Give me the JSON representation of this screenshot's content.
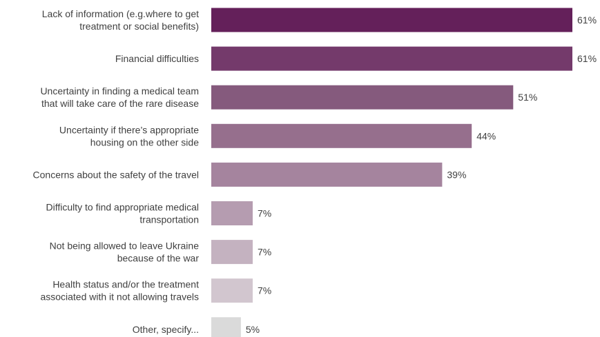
{
  "chart_data": {
    "type": "bar",
    "orientation": "horizontal",
    "categories": [
      [
        "Lack of information (e.g.where to get",
        "treatment or social benefits)"
      ],
      [
        "Financial difficulties"
      ],
      [
        "Uncertainty in finding a medical team",
        "that will take care of the rare disease"
      ],
      [
        "Uncertainty if there’s appropriate",
        "housing on the other side"
      ],
      [
        "Concerns about the safety of the travel"
      ],
      [
        "Difficulty to find appropriate medical",
        "transportation"
      ],
      [
        "Not being allowed to leave Ukraine",
        "because of the war"
      ],
      [
        "Health status and/or the treatment",
        "associated with it not allowing travels"
      ],
      [
        "Other, specify..."
      ]
    ],
    "values": [
      61,
      61,
      51,
      44,
      39,
      7,
      7,
      7,
      5
    ],
    "value_labels": [
      "61%",
      "61%",
      "51%",
      "44%",
      "39%",
      "7%",
      "7%",
      "7%",
      "5%"
    ],
    "unit": "%",
    "bar_colors": [
      "#64205a",
      "#743a6b",
      "#855a7d",
      "#966f8d",
      "#a5849e",
      "#b59cb0",
      "#c4b2c0",
      "#d2c6cf",
      "#dadada"
    ],
    "xlim": [
      0,
      61
    ],
    "grid": false,
    "legend": "none"
  }
}
